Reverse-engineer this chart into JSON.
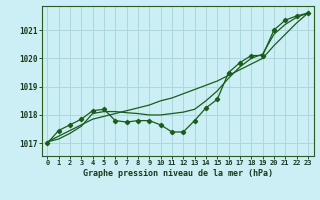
{
  "title": "Graphe pression niveau de la mer (hPa)",
  "background_color": "#cceef5",
  "grid_color": "#aad8e0",
  "line_color": "#1a5c1a",
  "xlim": [
    -0.5,
    23.5
  ],
  "ylim": [
    1016.55,
    1021.85
  ],
  "x_ticks": [
    0,
    1,
    2,
    3,
    4,
    5,
    6,
    7,
    8,
    9,
    10,
    11,
    12,
    13,
    14,
    15,
    16,
    17,
    18,
    19,
    20,
    21,
    22,
    23
  ],
  "y_ticks": [
    1017,
    1018,
    1019,
    1020,
    1021
  ],
  "hours": [
    0,
    1,
    2,
    3,
    4,
    5,
    6,
    7,
    8,
    9,
    10,
    11,
    12,
    13,
    14,
    15,
    16,
    17,
    18,
    19,
    20,
    21,
    22,
    23
  ],
  "pressure": [
    1017.0,
    1017.45,
    1017.65,
    1017.85,
    1018.15,
    1018.2,
    1017.8,
    1017.75,
    1017.8,
    1017.8,
    1017.65,
    1017.4,
    1017.4,
    1017.8,
    1018.25,
    1018.55,
    1019.5,
    1019.85,
    1020.1,
    1020.1,
    1021.0,
    1021.35,
    1021.5,
    1021.6
  ],
  "smooth": [
    1017.05,
    1017.15,
    1017.35,
    1017.6,
    1018.05,
    1018.12,
    1018.12,
    1018.08,
    1018.05,
    1018.0,
    1018.0,
    1018.05,
    1018.1,
    1018.2,
    1018.5,
    1018.85,
    1019.3,
    1019.7,
    1020.0,
    1020.15,
    1020.85,
    1021.2,
    1021.45,
    1021.6
  ],
  "trend": [
    1017.05,
    1017.25,
    1017.45,
    1017.65,
    1017.85,
    1017.95,
    1018.05,
    1018.15,
    1018.25,
    1018.35,
    1018.5,
    1018.6,
    1018.75,
    1018.9,
    1019.05,
    1019.2,
    1019.4,
    1019.6,
    1019.8,
    1020.0,
    1020.45,
    1020.85,
    1021.25,
    1021.6
  ]
}
